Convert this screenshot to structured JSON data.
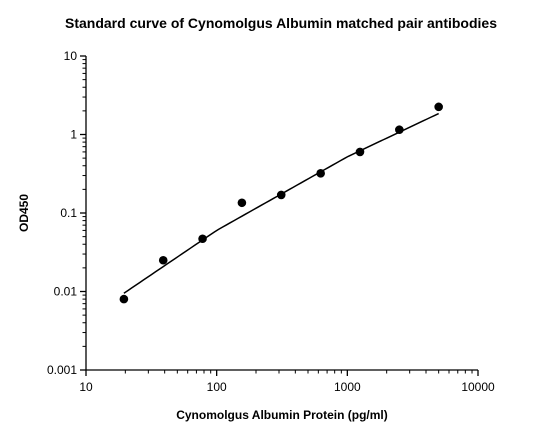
{
  "chart_data": {
    "type": "scatter",
    "title": "Standard curve of Cynomolgus Albumin matched pair antibodies",
    "xlabel": "Cynomolgus Albumin Protein (pg/ml)",
    "ylabel": "OD450",
    "xscale": "log",
    "yscale": "log",
    "xlim": [
      10,
      10000
    ],
    "ylim": [
      0.001,
      10
    ],
    "x_ticks": [
      "10",
      "100",
      "1000",
      "10000"
    ],
    "y_ticks": [
      "0.001",
      "0.01",
      "0.1",
      "1",
      "10"
    ],
    "grid": false,
    "legend": "none",
    "series": [
      {
        "points": [
          {
            "x": 19.5,
            "y": 0.008
          },
          {
            "x": 39,
            "y": 0.025
          },
          {
            "x": 78,
            "y": 0.047
          },
          {
            "x": 156,
            "y": 0.135
          },
          {
            "x": 312,
            "y": 0.17
          },
          {
            "x": 625,
            "y": 0.32
          },
          {
            "x": 1250,
            "y": 0.6
          },
          {
            "x": 2500,
            "y": 1.15
          },
          {
            "x": 5000,
            "y": 2.25
          }
        ]
      }
    ],
    "fit_curve": {
      "type": "power",
      "x_range": [
        19.5,
        5000
      ],
      "points": [
        {
          "x": 19.5,
          "y": 0.0095
        },
        {
          "x": 100,
          "y": 0.06
        },
        {
          "x": 1000,
          "y": 0.52
        },
        {
          "x": 5000,
          "y": 1.85
        }
      ]
    },
    "colors": {
      "marker": "#000000",
      "line": "#000000"
    }
  }
}
